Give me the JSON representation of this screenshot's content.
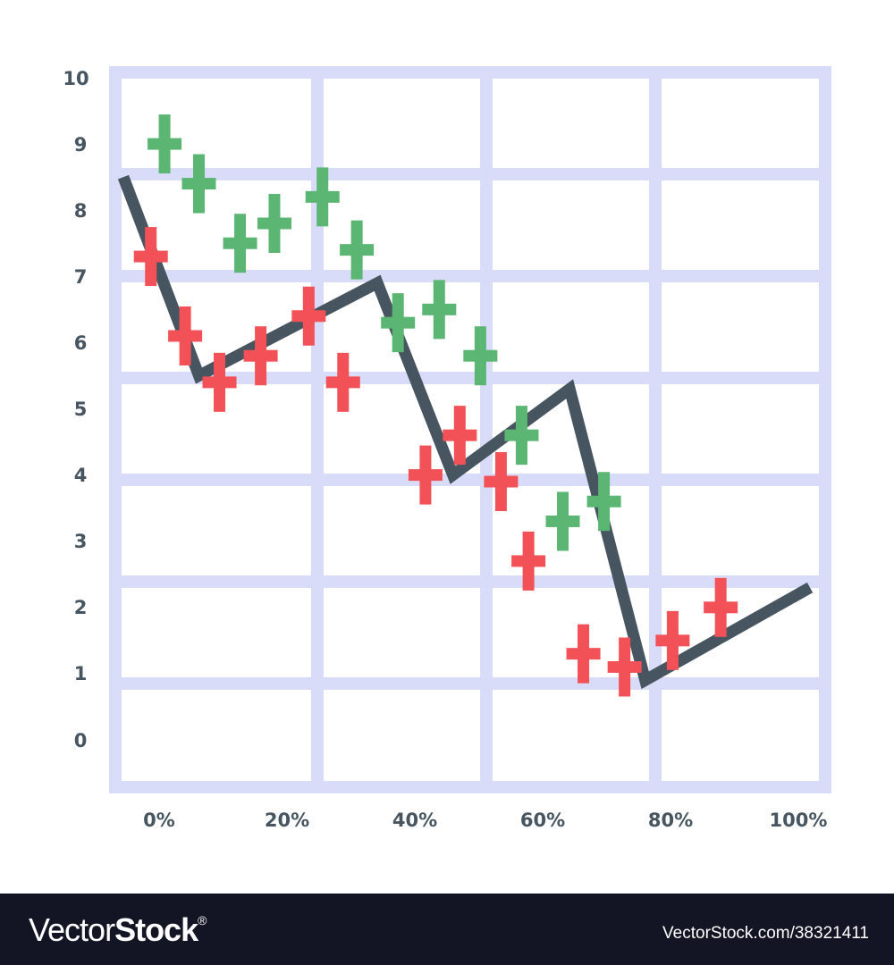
{
  "chart_data": {
    "type": "line",
    "title": "",
    "xlabel": "",
    "ylabel": "",
    "ylim": [
      0,
      10
    ],
    "xlim": [
      0,
      100
    ],
    "grid": true,
    "legend": null,
    "y_ticks": [
      "10",
      "9",
      "8",
      "7",
      "6",
      "5",
      "4",
      "3",
      "2",
      "1",
      "0"
    ],
    "x_ticks": [
      "0%",
      "20%",
      "40%",
      "60%",
      "80%",
      "100%"
    ],
    "series": [
      {
        "name": "trend-line",
        "kind": "line",
        "color": "#46555f",
        "points": [
          [
            0,
            8.5
          ],
          [
            11,
            5.5
          ],
          [
            37,
            6.9
          ],
          [
            48,
            4.0
          ],
          [
            65,
            5.3
          ],
          [
            76,
            0.9
          ],
          [
            100,
            2.3
          ]
        ]
      },
      {
        "name": "red-markers",
        "kind": "scatter",
        "marker": "plus",
        "color": "#f25157",
        "points": [
          [
            4,
            7.3
          ],
          [
            9,
            6.1
          ],
          [
            14,
            5.4
          ],
          [
            20,
            5.8
          ],
          [
            27,
            6.4
          ],
          [
            32,
            5.4
          ],
          [
            44,
            4.0
          ],
          [
            49,
            4.6
          ],
          [
            55,
            3.9
          ],
          [
            59,
            2.7
          ],
          [
            67,
            1.3
          ],
          [
            73,
            1.1
          ],
          [
            80,
            1.5
          ],
          [
            87,
            2.0
          ]
        ]
      },
      {
        "name": "green-markers",
        "kind": "scatter",
        "marker": "plus",
        "color": "#5ab672",
        "points": [
          [
            6,
            9.0
          ],
          [
            11,
            8.4
          ],
          [
            17,
            7.5
          ],
          [
            22,
            7.8
          ],
          [
            29,
            8.2
          ],
          [
            34,
            7.4
          ],
          [
            40,
            6.3
          ],
          [
            46,
            6.5
          ],
          [
            52,
            5.8
          ],
          [
            58,
            4.6
          ],
          [
            64,
            3.3
          ],
          [
            70,
            3.6
          ]
        ]
      }
    ],
    "grid_color": "#d9dcf8"
  },
  "footer": {
    "brand_thin": "Vector",
    "brand_bold": "Stock",
    "brand_mark": "®",
    "reference": "VectorStock.com/38321411"
  }
}
